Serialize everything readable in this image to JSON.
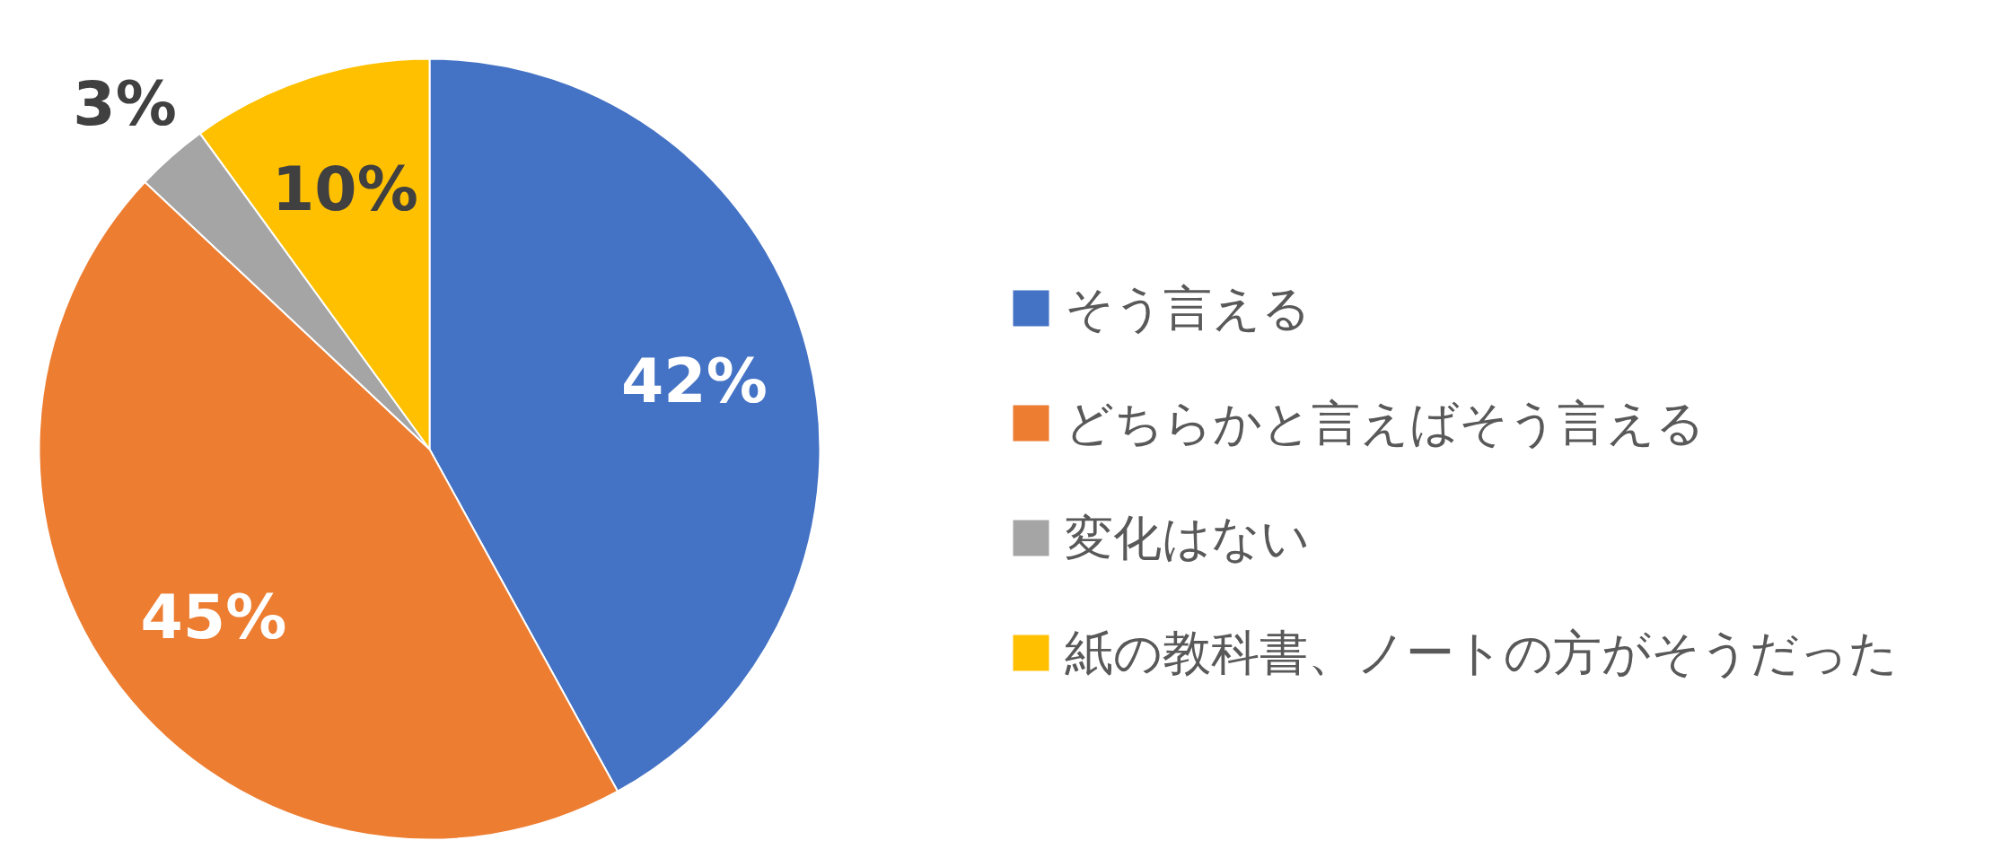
{
  "chart_data": {
    "type": "pie",
    "categories": [
      "そう言える",
      "どちらかと言えばそう言える",
      "変化はない",
      "紙の教科書、ノートの方がそうだった"
    ],
    "values": [
      42,
      45,
      3,
      10
    ],
    "colors": [
      "#4472c4",
      "#ed7d31",
      "#a5a5a5",
      "#ffc000"
    ],
    "value_labels": [
      "42%",
      "45%",
      "3%",
      "10%"
    ],
    "legend": "right"
  }
}
